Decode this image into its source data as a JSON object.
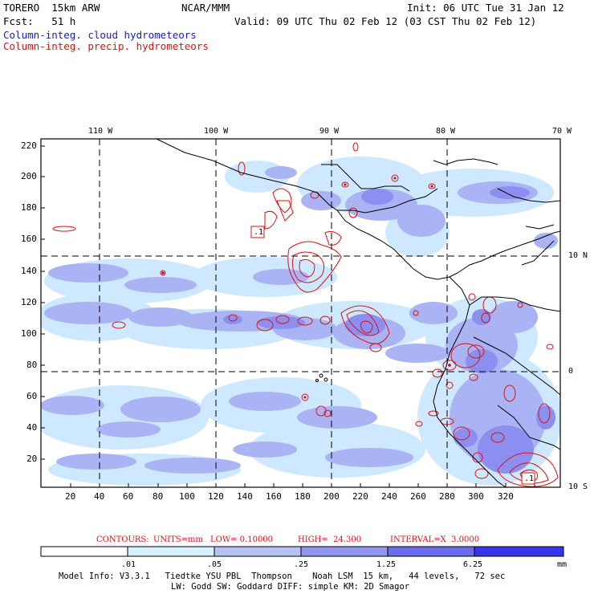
{
  "header": {
    "model_name": "TORERO  15km ARW",
    "org": "NCAR/MMM",
    "init": "Init: 06 UTC Tue 31 Jan 12",
    "fcst": "Fcst:   51 h",
    "valid": "Valid: 09 UTC Thu 02 Feb 12 (03 CST Thu 02 Feb 12)",
    "field1": "Column-integ. cloud hydrometeors",
    "field2": "Column-integ. precip. hydrometeors"
  },
  "map": {
    "lon_labels": [
      "110 W",
      "100 W",
      "90 W",
      "80 W",
      "70 W"
    ],
    "lat_labels": [
      "10 N",
      "0",
      "10 S"
    ],
    "left_axis": [
      "220",
      "200",
      "180",
      "160",
      "140",
      "120",
      "100",
      "80",
      "60",
      "40",
      "20"
    ],
    "bottom_axis": [
      "20",
      "40",
      "60",
      "80",
      "100",
      "120",
      "140",
      "160",
      "180",
      "200",
      "220",
      "240",
      "260",
      "280",
      "300",
      "320"
    ],
    "inset_labels": [
      ".1",
      ".1"
    ],
    "colors": {
      "cloud_light": "#cde8ff",
      "cloud_mid": "#aab3f3",
      "cloud_dark": "#8c8ff0",
      "precip_contour": "#dd1111",
      "coast": "#000000"
    }
  },
  "contours": {
    "label": "CONTOURS:",
    "units": "UNITS=mm",
    "low": "LOW= 0.10000",
    "high": "HIGH=  24.300",
    "interval": "INTERVAL=X  3.0000"
  },
  "colorbar": {
    "ticks": [
      ".01",
      ".05",
      ".25",
      "1.25",
      "6.25"
    ],
    "unit": "mm",
    "colors": [
      "#ffffff",
      "#d6f2fd",
      "#b7c2f4",
      "#9296ec",
      "#6a6ceb",
      "#3535ee"
    ]
  },
  "footer": {
    "line1": "Model Info: V3.3.1   Tiedtke YSU PBL  Thompson    Noah LSM  15 km,   44 levels,   72 sec",
    "line2": "LW: Godd SW: Goddard DIFF: simple KM: 2D Smagor"
  }
}
